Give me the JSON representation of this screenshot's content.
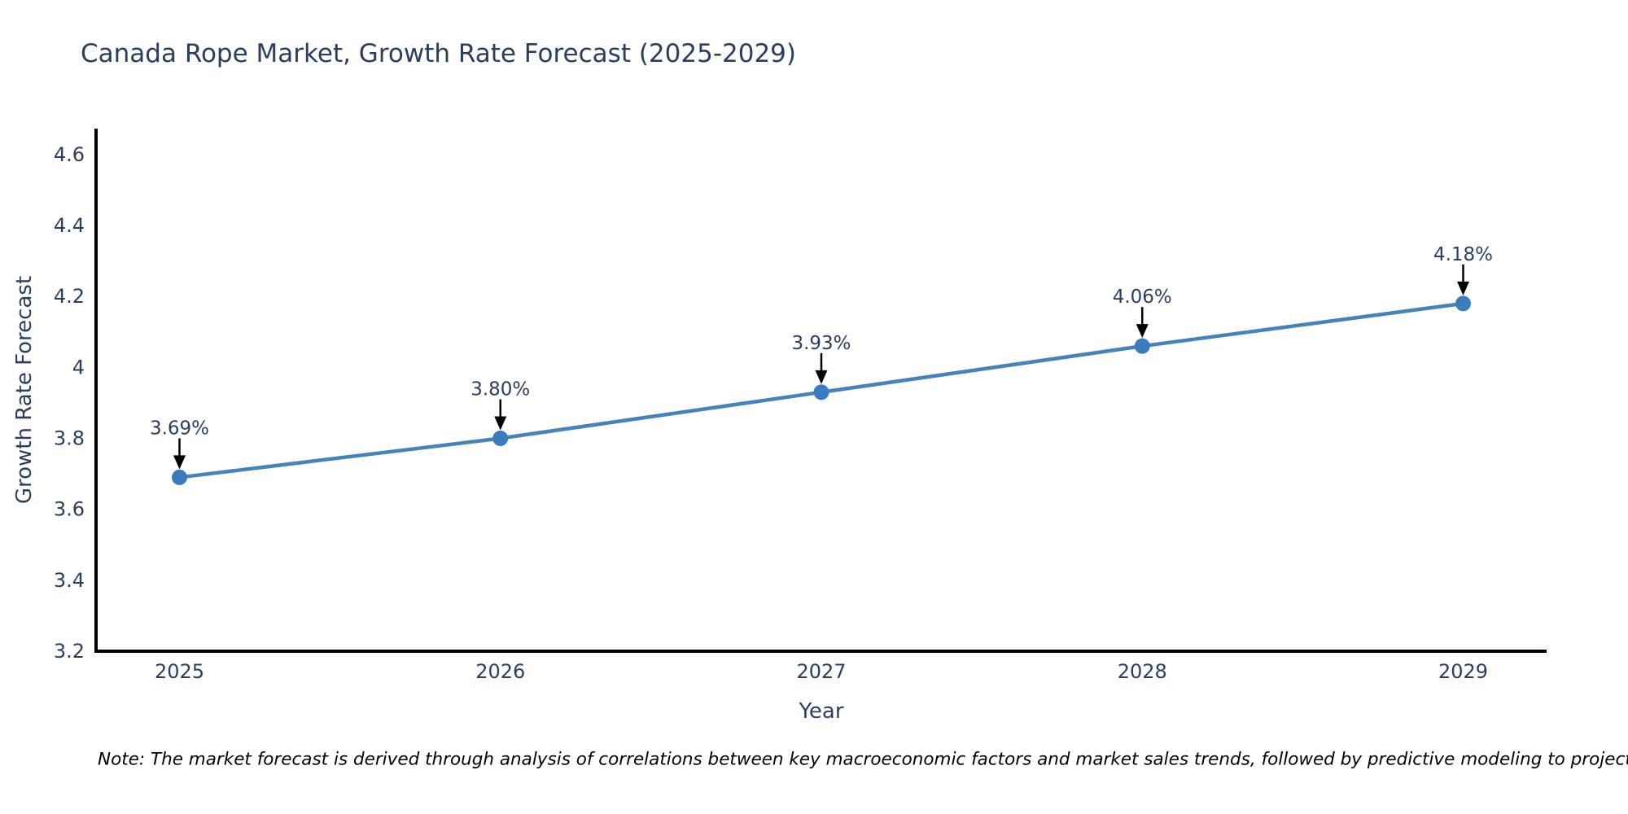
{
  "title": "Canada Rope Market, Growth Rate Forecast (2025-2029)",
  "note": "Note: The market forecast is derived through analysis of correlations between key macroeconomic factors and market sales trends, followed by predictive modeling to project future sales",
  "chart_data": {
    "type": "line",
    "title": "Canada Rope Market, Growth Rate Forecast (2025-2029)",
    "xlabel": "Year",
    "ylabel": "Growth Rate Forecast",
    "x": [
      2025,
      2026,
      2027,
      2028,
      2029
    ],
    "categories": [
      "2025",
      "2026",
      "2027",
      "2028",
      "2029"
    ],
    "values": [
      3.69,
      3.8,
      3.93,
      4.06,
      4.18
    ],
    "point_labels": [
      "3.69%",
      "3.80%",
      "3.93%",
      "4.06%",
      "4.18%"
    ],
    "yticks": [
      3.2,
      3.4,
      3.6,
      3.8,
      4,
      4.2,
      4.4,
      4.6
    ],
    "ytick_labels": [
      "3.2",
      "3.4",
      "3.6",
      "3.8",
      "4",
      "4.2",
      "4.4",
      "4.6"
    ],
    "xlim": [
      2024.74,
      2029.26
    ],
    "ylim": [
      3.2,
      4.673
    ],
    "grid": false,
    "legend": "none",
    "annotation_arrows": true,
    "colors": {
      "line": "#4583bb",
      "marker": "#3a7cbe",
      "axis": "#010103",
      "text": "#2a3f5f",
      "arrow": "#000000"
    }
  }
}
